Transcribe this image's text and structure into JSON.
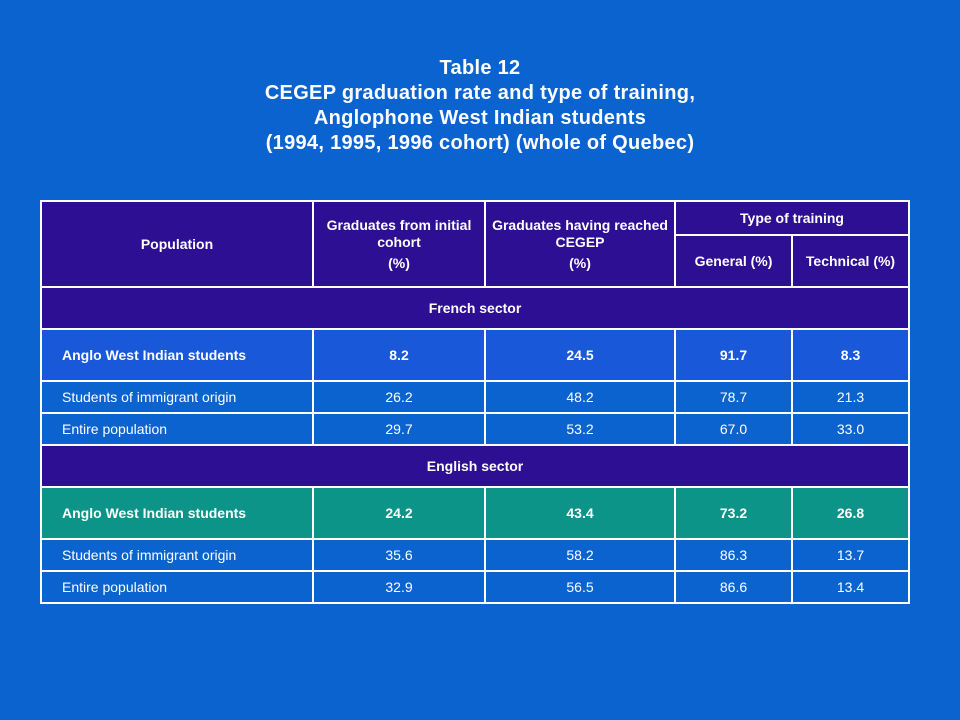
{
  "title": {
    "line1": "Table 12",
    "line2": "CEGEP graduation rate and type of training,",
    "line3": "Anglophone West Indian students",
    "line4": "(1994, 1995, 1996 cohort) (whole of Quebec)"
  },
  "colors": {
    "background": "#0b63cf",
    "header": "#2d0f93",
    "french_highlight": "#1958d8",
    "english_highlight": "#0d9488",
    "border": "#ffffff"
  },
  "headers": {
    "population": "Population",
    "graduates_initial": "Graduates from initial cohort",
    "graduates_initial_unit": "(%)",
    "graduates_cegep": "Graduates having reached CEGEP",
    "graduates_cegep_unit": "(%)",
    "training_type": "Type of training",
    "general": "General (%)",
    "technical": "Technical (%)"
  },
  "sections": [
    {
      "label": "French sector",
      "rows": [
        {
          "population": "Anglo West Indian students",
          "graduates_initial": "8.2",
          "graduates_cegep": "24.5",
          "general": "91.7",
          "technical": "8.3"
        },
        {
          "population": "Students of immigrant origin",
          "graduates_initial": "26.2",
          "graduates_cegep": "48.2",
          "general": "78.7",
          "technical": "21.3"
        },
        {
          "population": "Entire population",
          "graduates_initial": "29.7",
          "graduates_cegep": "53.2",
          "general": "67.0",
          "technical": "33.0"
        }
      ]
    },
    {
      "label": "English sector",
      "rows": [
        {
          "population": "Anglo West Indian students",
          "graduates_initial": "24.2",
          "graduates_cegep": "43.4",
          "general": "73.2",
          "technical": "26.8"
        },
        {
          "population": "Students of immigrant origin",
          "graduates_initial": "35.6",
          "graduates_cegep": "58.2",
          "general": "86.3",
          "technical": "13.7"
        },
        {
          "population": "Entire population",
          "graduates_initial": "32.9",
          "graduates_cegep": "56.5",
          "general": "86.6",
          "technical": "13.4"
        }
      ]
    }
  ]
}
